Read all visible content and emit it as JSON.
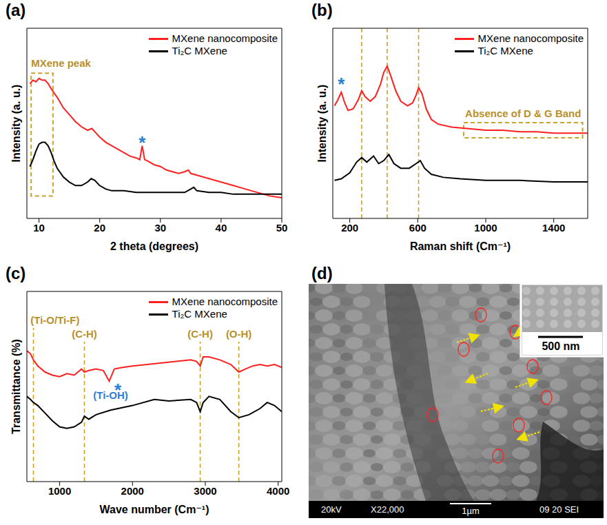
{
  "chart_data": [
    {
      "panel": "(a)",
      "type": "line",
      "x_label": "2 theta (degrees)",
      "y_label": "Intensity (a. u.)",
      "xlim": [
        8,
        50
      ],
      "xticks": [
        10,
        20,
        30,
        40,
        50
      ],
      "ylim": [
        0,
        110
      ],
      "yticks": [],
      "tick_labels": "x",
      "legend": "upper right",
      "series": [
        {
          "name": "MXene nanocomposite",
          "color": "#ff1f1f",
          "x": [
            8.5,
            9,
            9.5,
            10,
            10.5,
            11,
            11.5,
            12,
            13,
            14,
            15,
            16,
            17,
            18,
            18.7,
            19.5,
            20,
            21,
            22,
            23,
            24,
            25,
            26,
            26.6,
            27,
            27.4,
            28,
            29,
            30,
            31,
            32,
            33,
            34,
            34.6,
            35,
            36,
            38,
            40,
            42,
            44,
            46,
            48,
            50
          ],
          "values": [
            78,
            80,
            79,
            81,
            80,
            80,
            78,
            75,
            70,
            64,
            60,
            56,
            53,
            51,
            52,
            49,
            47,
            44,
            42,
            40,
            38,
            36,
            35,
            34,
            42,
            34,
            33,
            31,
            30,
            28,
            27,
            26,
            27,
            28,
            26,
            25,
            23,
            21,
            19,
            17,
            15,
            13,
            12
          ]
        },
        {
          "name": "Ti₂C MXene",
          "color": "#000000",
          "x": [
            8.5,
            9,
            9.5,
            10,
            10.5,
            11,
            11.5,
            12,
            12.5,
            13,
            14,
            15,
            16,
            17,
            18,
            18.6,
            19.2,
            20,
            21,
            22,
            24,
            26,
            28,
            30,
            32,
            34,
            35,
            35.5,
            36,
            38,
            40,
            42,
            45,
            48,
            50
          ],
          "values": [
            30,
            34,
            39,
            43,
            44,
            44,
            42,
            38,
            33,
            29,
            24,
            21,
            19,
            19,
            21,
            23,
            22,
            19,
            17,
            16,
            16,
            15,
            15,
            15,
            15,
            15,
            17,
            18,
            16,
            15,
            15,
            14,
            14,
            14,
            14
          ]
        }
      ],
      "annotations": [
        {
          "text": "MXene peak",
          "x": 8.7,
          "y": 90,
          "color": "#b8902a"
        },
        {
          "text": "*",
          "x": 27,
          "y": 47,
          "color": "#2a7fd4"
        }
      ],
      "boxes": [
        {
          "x": [
            8.7,
            12.3
          ],
          "y": [
            13,
            84
          ],
          "color": "#c9a227"
        }
      ]
    },
    {
      "panel": "(b)",
      "type": "line",
      "x_label": "Raman shift (Cm⁻¹)",
      "y_label": "Intensity (a. u.)",
      "xlim": [
        100,
        1600
      ],
      "xticks": [
        200,
        600,
        1000,
        1400
      ],
      "ylim": [
        0,
        125
      ],
      "yticks": [],
      "tick_labels": "x",
      "legend": "upper right",
      "series": [
        {
          "name": "MXene nanocomposite",
          "color": "#ff1f1f",
          "x": [
            110,
            130,
            150,
            170,
            190,
            220,
            250,
            270,
            290,
            320,
            350,
            380,
            400,
            420,
            440,
            470,
            500,
            540,
            570,
            590,
            605,
            625,
            650,
            680,
            720,
            800,
            900,
            1000,
            1100,
            1200,
            1300,
            1400,
            1500,
            1600
          ],
          "values": [
            74,
            78,
            83,
            76,
            71,
            72,
            78,
            84,
            80,
            77,
            80,
            88,
            96,
            100,
            94,
            84,
            77,
            74,
            76,
            81,
            86,
            82,
            72,
            65,
            62,
            60,
            59,
            58,
            58,
            57,
            57,
            56,
            56,
            56
          ]
        },
        {
          "name": "Ti₂C MXene",
          "color": "#000000",
          "x": [
            110,
            150,
            200,
            240,
            270,
            300,
            340,
            370,
            400,
            430,
            460,
            500,
            550,
            590,
            615,
            640,
            680,
            750,
            850,
            1000,
            1200,
            1400,
            1600
          ],
          "values": [
            25,
            26,
            30,
            37,
            40,
            37,
            41,
            36,
            38,
            42,
            36,
            33,
            33,
            36,
            38,
            33,
            29,
            27,
            26,
            25,
            25,
            24,
            24
          ]
        }
      ],
      "reference_lines": {
        "x": [
          270,
          420,
          605
        ],
        "color": "#c9a227"
      },
      "annotations": [
        {
          "text": "*",
          "x": 150,
          "y": 92,
          "color": "#2a7fd4"
        },
        {
          "text": "Absence of D & G Band",
          "x": 1220,
          "y": 69,
          "color": "#b8902a"
        }
      ],
      "boxes": [
        {
          "x": [
            870,
            1570
          ],
          "y": [
            53,
            63
          ],
          "color": "#c9a227"
        }
      ]
    },
    {
      "panel": "(c)",
      "type": "line",
      "x_label": "Wave number (Cm⁻¹)",
      "y_label": "Transmittance (%)",
      "xlim": [
        550,
        4050
      ],
      "xticks": [
        1000,
        2000,
        3000,
        4000
      ],
      "ylim": [
        0,
        125
      ],
      "yticks": [],
      "tick_labels": "x",
      "legend": "upper right",
      "series": [
        {
          "name": "MXene nanocomposite",
          "color": "#ff1f1f",
          "x": [
            550,
            600,
            640,
            700,
            800,
            900,
            1000,
            1100,
            1200,
            1300,
            1340,
            1400,
            1500,
            1600,
            1680,
            1750,
            1850,
            2000,
            2200,
            2400,
            2600,
            2800,
            2880,
            2930,
            2970,
            3050,
            3200,
            3350,
            3460,
            3550,
            3650,
            3750,
            3850,
            3950,
            4050
          ],
          "values": [
            86,
            84,
            80,
            76,
            72,
            70,
            69,
            71,
            70,
            74,
            72,
            73,
            74,
            73,
            66,
            74,
            75,
            76,
            77,
            78,
            79,
            80,
            79,
            76,
            82,
            82,
            80,
            77,
            72,
            74,
            76,
            77,
            76,
            77,
            75
          ]
        },
        {
          "name": "Ti₂C MXene",
          "color": "#000000",
          "x": [
            550,
            600,
            640,
            700,
            800,
            900,
            1000,
            1100,
            1200,
            1300,
            1340,
            1400,
            1500,
            1700,
            2000,
            2300,
            2500,
            2800,
            2880,
            2930,
            2970,
            3050,
            3200,
            3350,
            3460,
            3600,
            3750,
            3850,
            3950,
            4050
          ],
          "values": [
            56,
            54,
            52,
            50,
            45,
            40,
            36,
            35,
            36,
            39,
            43,
            41,
            44,
            47,
            50,
            54,
            53,
            54,
            52,
            46,
            52,
            56,
            54,
            46,
            42,
            44,
            48,
            52,
            50,
            46
          ]
        }
      ],
      "reference_lines": {
        "x": [
          640,
          1340,
          2930,
          3460
        ],
        "color": "#c9a227"
      },
      "annotations": [
        {
          "text": "(Ti-O/Ti-F)",
          "x": 600,
          "y": 106,
          "color": "#b8902a"
        },
        {
          "text": "(C-H)",
          "x": 1340,
          "y": 97,
          "color": "#b8902a"
        },
        {
          "text": "(C-H)",
          "x": 2930,
          "y": 97,
          "color": "#b8902a"
        },
        {
          "text": "(O-H)",
          "x": 3460,
          "y": 97,
          "color": "#b8902a"
        },
        {
          "text": "(Ti-OH)",
          "x": 1700,
          "y": 57,
          "color": "#2a7fd4"
        },
        {
          "text": "*",
          "x": 1800,
          "y": 64,
          "color": "#2a7fd4"
        }
      ]
    }
  ],
  "image_panel": {
    "panel": "(d)",
    "type": "image",
    "info_bar": [
      "20kV",
      "X22,000",
      "1µm",
      "09 20 SEI"
    ],
    "inset_scale": "500 nm"
  }
}
